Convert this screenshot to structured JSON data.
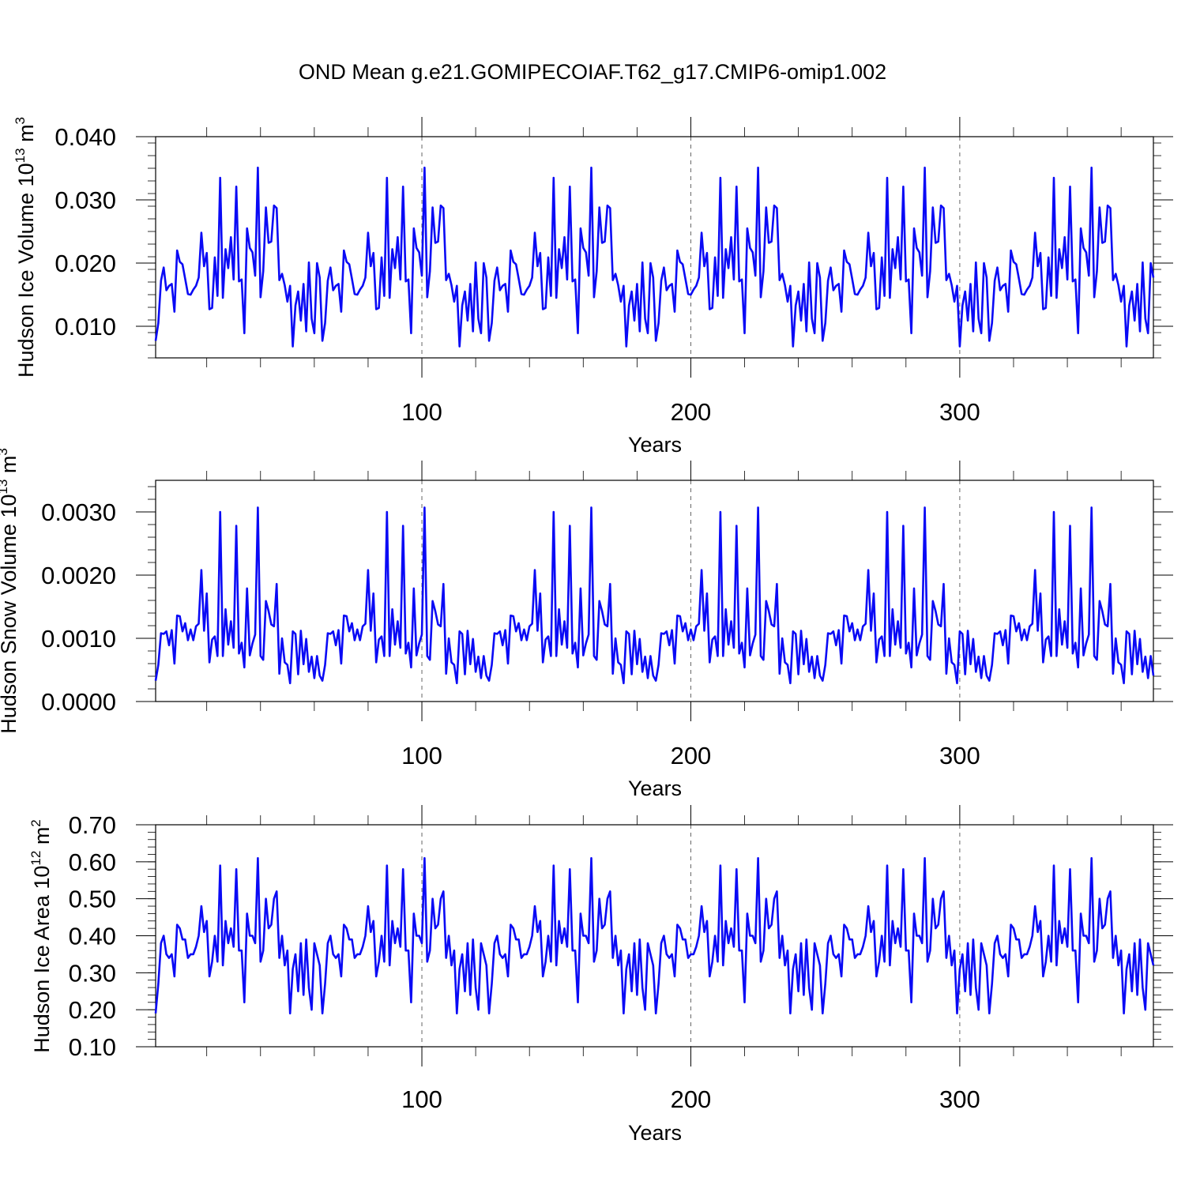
{
  "title": "OND Mean g.e21.GOMIPECOIAF.T62_g17.CMIP6-omip1.002",
  "line_color": "#0a0af5",
  "chart_data": [
    {
      "type": "line",
      "title": "OND Mean g.e21.GOMIPECOIAF.T62_g17.CMIP6-omip1.002",
      "xlabel": "Years",
      "ylabel": {
        "main": "Hudson Ice Volume 10",
        "exp": "13",
        "unit": " m",
        "unit_exp": "3"
      },
      "xlim": [
        1,
        372
      ],
      "ylim": [
        0.005,
        0.04
      ],
      "yticks": [
        0.01,
        0.02,
        0.03,
        0.04
      ],
      "ytick_labels": [
        "0.010",
        "0.020",
        "0.030",
        "0.040"
      ],
      "xticks": [
        100,
        200,
        300
      ],
      "xtick_labels": [
        "100",
        "200",
        "300"
      ],
      "dashed_gridlines_x": [
        100,
        200,
        300
      ],
      "series": [
        {
          "name": "Hudson Ice Volume",
          "x_start": 1,
          "cycle_length": 62,
          "cycles": 6,
          "values": [
            0.0077,
            0.0105,
            0.0172,
            0.0193,
            0.0157,
            0.0164,
            0.0167,
            0.0123,
            0.022,
            0.0202,
            0.0198,
            0.0175,
            0.0151,
            0.015,
            0.0158,
            0.0164,
            0.0177,
            0.0248,
            0.0195,
            0.0216,
            0.0127,
            0.0129,
            0.0209,
            0.0148,
            0.0335,
            0.0145,
            0.0222,
            0.0192,
            0.0241,
            0.0174,
            0.0321,
            0.0171,
            0.0174,
            0.0089,
            0.0255,
            0.0224,
            0.0217,
            0.018,
            0.0351,
            0.0146,
            0.0187,
            0.0288,
            0.0232,
            0.0234,
            0.0291,
            0.0287,
            0.0173,
            0.0183,
            0.0165,
            0.0139,
            0.0164,
            0.0068,
            0.0133,
            0.0155,
            0.0109,
            0.0167,
            0.0092,
            0.0201,
            0.0112,
            0.0089,
            0.02,
            0.0177
          ]
        }
      ]
    },
    {
      "type": "line",
      "xlabel": "Years",
      "ylabel": {
        "main": "Hudson Snow Volume 10",
        "exp": "13",
        "unit": " m",
        "unit_exp": "3"
      },
      "xlim": [
        1,
        372
      ],
      "ylim": [
        0,
        0.0035
      ],
      "yticks": [
        0,
        0.001,
        0.002,
        0.003
      ],
      "ytick_labels": [
        "0.0000",
        "0.0010",
        "0.0020",
        "0.0030"
      ],
      "xticks": [
        100,
        200,
        300
      ],
      "xtick_labels": [
        "100",
        "200",
        "300"
      ],
      "dashed_gridlines_x": [
        100,
        200,
        300
      ],
      "series": [
        {
          "name": "Hudson Snow Volume",
          "x_start": 1,
          "cycle_length": 62,
          "cycles": 6,
          "values": [
            0.00033,
            0.00058,
            0.00108,
            0.00107,
            0.00111,
            0.00089,
            0.00113,
            0.0006,
            0.00136,
            0.00135,
            0.00111,
            0.00124,
            0.00097,
            0.00114,
            0.00097,
            0.00119,
            0.00123,
            0.00208,
            0.00112,
            0.00171,
            0.00062,
            0.00098,
            0.00103,
            0.00072,
            0.003,
            0.00072,
            0.00146,
            0.0009,
            0.00127,
            0.00085,
            0.00278,
            0.00076,
            0.00093,
            0.00054,
            0.00179,
            0.00073,
            0.00092,
            0.00106,
            0.00307,
            0.00072,
            0.00066,
            0.00159,
            0.00143,
            0.00122,
            0.00119,
            0.00186,
            0.00044,
            0.001,
            0.00062,
            0.00058,
            0.00029,
            0.00111,
            0.00107,
            0.00043,
            0.00112,
            0.00059,
            0.00099,
            0.00047,
            0.00071,
            0.00037,
            0.00072,
            0.00041
          ]
        }
      ]
    },
    {
      "type": "line",
      "xlabel": "Years",
      "ylabel": {
        "main": "Hudson Ice Area 10",
        "exp": "12",
        "unit": " m",
        "unit_exp": "2"
      },
      "xlim": [
        1,
        372
      ],
      "ylim": [
        0.1,
        0.7
      ],
      "yticks": [
        0.1,
        0.2,
        0.3,
        0.4,
        0.5,
        0.6,
        0.7
      ],
      "ytick_labels": [
        "0.10",
        "0.20",
        "0.30",
        "0.40",
        "0.50",
        "0.60",
        "0.70"
      ],
      "xticks": [
        100,
        200,
        300
      ],
      "xtick_labels": [
        "100",
        "200",
        "300"
      ],
      "dashed_gridlines_x": [
        100,
        200,
        300
      ],
      "series": [
        {
          "name": "Hudson Ice Area",
          "x_start": 1,
          "cycle_length": 62,
          "cycles": 6,
          "values": [
            0.19,
            0.27,
            0.38,
            0.4,
            0.35,
            0.34,
            0.35,
            0.29,
            0.43,
            0.42,
            0.39,
            0.39,
            0.34,
            0.35,
            0.35,
            0.37,
            0.4,
            0.48,
            0.41,
            0.44,
            0.29,
            0.33,
            0.4,
            0.33,
            0.59,
            0.32,
            0.44,
            0.38,
            0.42,
            0.37,
            0.58,
            0.36,
            0.36,
            0.22,
            0.46,
            0.4,
            0.4,
            0.38,
            0.61,
            0.33,
            0.36,
            0.5,
            0.42,
            0.43,
            0.5,
            0.52,
            0.34,
            0.4,
            0.32,
            0.36,
            0.19,
            0.31,
            0.35,
            0.25,
            0.38,
            0.24,
            0.39,
            0.26,
            0.2,
            0.38,
            0.35,
            0.32
          ]
        }
      ]
    }
  ]
}
